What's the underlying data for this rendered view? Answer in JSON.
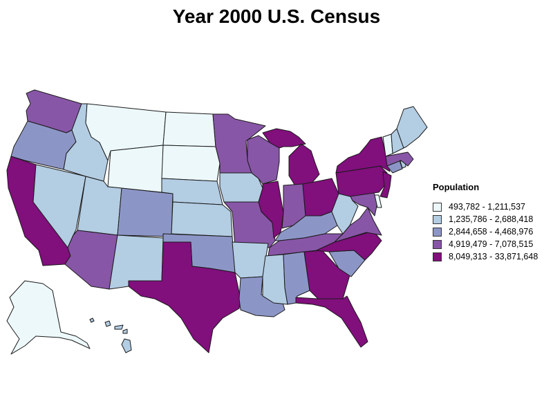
{
  "title": "Year 2000 U.S. Census",
  "legend": {
    "title": "Population",
    "classes": [
      {
        "label": "493,782 - 1,211,537",
        "color": "#edf8fb"
      },
      {
        "label": "1,235,786 - 2,688,418",
        "color": "#b3cde3"
      },
      {
        "label": "2,844,658 - 4,468,976",
        "color": "#8c96c6"
      },
      {
        "label": "4,919,479 - 7,078,515",
        "color": "#8856a7"
      },
      {
        "label": "8,049,313 - 33,871,648",
        "color": "#810f7c"
      }
    ]
  },
  "states": {
    "WA": 3,
    "OR": 2,
    "CA": 4,
    "NV": 1,
    "ID": 1,
    "MT": 0,
    "WY": 0,
    "UT": 1,
    "AZ": 3,
    "CO": 2,
    "NM": 1,
    "ND": 0,
    "SD": 0,
    "NE": 1,
    "KS": 1,
    "OK": 2,
    "TX": 4,
    "MN": 3,
    "IA": 1,
    "MO": 3,
    "AR": 1,
    "LA": 2,
    "WI": 3,
    "IL": 4,
    "MI": 4,
    "IN": 3,
    "OH": 4,
    "KY": 2,
    "TN": 3,
    "MS": 1,
    "AL": 2,
    "GA": 4,
    "FL": 4,
    "SC": 2,
    "NC": 4,
    "VA": 3,
    "WV": 1,
    "MD": 3,
    "DE": 0,
    "PA": 4,
    "NJ": 4,
    "NY": 4,
    "CT": 2,
    "RI": 1,
    "MA": 3,
    "VT": 0,
    "NH": 1,
    "ME": 1,
    "AK": 0,
    "HI": 1
  }
}
